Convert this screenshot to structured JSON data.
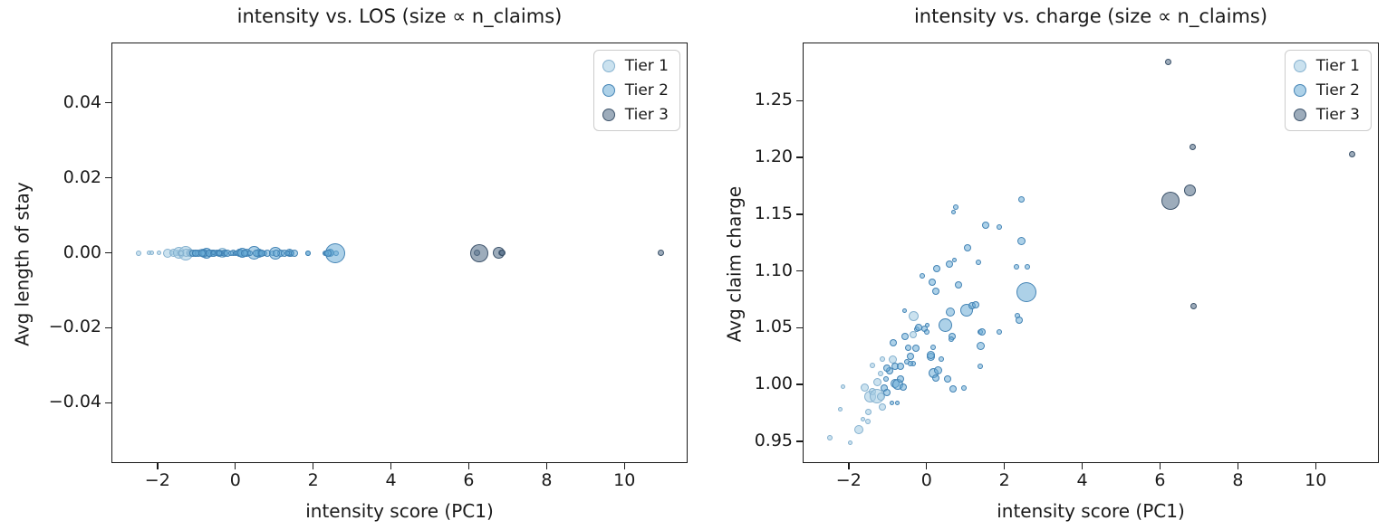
{
  "colors": {
    "frame": "#1a1a1a",
    "text": "#1a1a1a",
    "legend_border": "#cccccc",
    "tier1": {
      "fill": "rgba(168,206,228,0.6)",
      "edge": "rgba(130,175,206,0.95)"
    },
    "tier2": {
      "fill": "rgba(105,172,214,0.55)",
      "edge": "rgba(62,128,178,0.95)"
    },
    "tier3": {
      "fill": "rgba(92,116,141,0.6)",
      "edge": "rgba(55,78,102,0.95)"
    }
  },
  "legend": {
    "items": [
      {
        "label": "Tier 1",
        "tier": 1
      },
      {
        "label": "Tier 2",
        "tier": 2
      },
      {
        "label": "Tier 3",
        "tier": 3
      }
    ]
  },
  "chart_data": {
    "charts": [
      {
        "type": "scatter",
        "title": "intensity vs. LOS (size ∝ n_claims)",
        "xlabel": "intensity score (PC1)",
        "ylabel": "Avg length of stay",
        "xlim": [
          -3.16,
          11.6
        ],
        "ylim": [
          -0.0558,
          0.0558
        ],
        "xticks": [
          {
            "v": -2,
            "label": "−2"
          },
          {
            "v": 0,
            "label": "0"
          },
          {
            "v": 2,
            "label": "2"
          },
          {
            "v": 4,
            "label": "4"
          },
          {
            "v": 6,
            "label": "6"
          },
          {
            "v": 8,
            "label": "8"
          },
          {
            "v": 10,
            "label": "10"
          }
        ],
        "yticks": [
          {
            "v": 0.04,
            "label": "0.04"
          },
          {
            "v": 0.02,
            "label": "0.02"
          },
          {
            "v": 0,
            "label": "0.00"
          },
          {
            "v": -0.02,
            "label": "−0.02"
          },
          {
            "v": -0.04,
            "label": "−0.04"
          }
        ],
        "legend_position": "upper right",
        "y_field": "zero",
        "note": "every point has Avg length of stay = 0.00"
      },
      {
        "type": "scatter",
        "title": "intensity vs. charge (size ∝ n_claims)",
        "xlabel": "intensity score (PC1)",
        "ylabel": "Avg claim charge",
        "xlim": [
          -3.16,
          11.6
        ],
        "ylim": [
          0.9315,
          1.3005
        ],
        "xticks": [
          {
            "v": -2,
            "label": "−2"
          },
          {
            "v": 0,
            "label": "0"
          },
          {
            "v": 2,
            "label": "2"
          },
          {
            "v": 4,
            "label": "4"
          },
          {
            "v": 6,
            "label": "6"
          },
          {
            "v": 8,
            "label": "8"
          },
          {
            "v": 10,
            "label": "10"
          }
        ],
        "yticks": [
          {
            "v": 1.25,
            "label": "1.25"
          },
          {
            "v": 1.2,
            "label": "1.20"
          },
          {
            "v": 1.15,
            "label": "1.15"
          },
          {
            "v": 1.1,
            "label": "1.10"
          },
          {
            "v": 1.05,
            "label": "1.05"
          },
          {
            "v": 1.0,
            "label": "1.00"
          },
          {
            "v": 0.95,
            "label": "0.95"
          }
        ],
        "legend_position": "upper right",
        "y_field": "charge",
        "note": "x values shared with left chart; marker size proportional to n_claims"
      }
    ],
    "points": [
      {
        "x": -2.49,
        "charge": 0.953,
        "r": 3,
        "tier": 1
      },
      {
        "x": -2.21,
        "charge": 0.978,
        "r": 2.5,
        "tier": 1
      },
      {
        "x": -2.14,
        "charge": 0.998,
        "r": 2.5,
        "tier": 1
      },
      {
        "x": -1.95,
        "charge": 0.949,
        "r": 2.5,
        "tier": 1
      },
      {
        "x": -1.74,
        "charge": 0.96,
        "r": 5,
        "tier": 1
      },
      {
        "x": -1.63,
        "charge": 0.969,
        "r": 2.5,
        "tier": 1
      },
      {
        "x": -1.51,
        "charge": 0.967,
        "r": 3,
        "tier": 1
      },
      {
        "x": -1.49,
        "charge": 0.976,
        "r": 3.5,
        "tier": 1
      },
      {
        "x": -1.6,
        "charge": 0.997,
        "r": 4.5,
        "tier": 1
      },
      {
        "x": -1.44,
        "charge": 0.989,
        "r": 6.5,
        "tier": 1
      },
      {
        "x": -1.4,
        "charge": 0.994,
        "r": 4,
        "tier": 1
      },
      {
        "x": -1.28,
        "charge": 0.99,
        "r": 8,
        "tier": 1
      },
      {
        "x": -1.16,
        "charge": 0.989,
        "r": 4.5,
        "tier": 1
      },
      {
        "x": -1.13,
        "charge": 0.98,
        "r": 4,
        "tier": 1
      },
      {
        "x": -1.26,
        "charge": 1.002,
        "r": 4.5,
        "tier": 1
      },
      {
        "x": -1.17,
        "charge": 1.01,
        "r": 3,
        "tier": 1
      },
      {
        "x": -1.4,
        "charge": 1.017,
        "r": 3,
        "tier": 1
      },
      {
        "x": -1.13,
        "charge": 1.022,
        "r": 3,
        "tier": 1
      },
      {
        "x": -0.86,
        "charge": 1.022,
        "r": 4.5,
        "tier": 1
      },
      {
        "x": -0.35,
        "charge": 1.044,
        "r": 4,
        "tier": 1
      },
      {
        "x": -0.33,
        "charge": 1.06,
        "r": 5.5,
        "tier": 1
      },
      {
        "x": -1.09,
        "charge": 0.997,
        "r": 4,
        "tier": 2
      },
      {
        "x": -1.02,
        "charge": 0.993,
        "r": 4,
        "tier": 2
      },
      {
        "x": -0.9,
        "charge": 0.984,
        "r": 2.5,
        "tier": 2
      },
      {
        "x": -0.74,
        "charge": 0.984,
        "r": 2.5,
        "tier": 2
      },
      {
        "x": -1.05,
        "charge": 1.005,
        "r": 3,
        "tier": 2
      },
      {
        "x": -0.82,
        "charge": 1.001,
        "r": 5,
        "tier": 2
      },
      {
        "x": -0.74,
        "charge": 1.0,
        "r": 6,
        "tier": 2
      },
      {
        "x": -0.67,
        "charge": 1.005,
        "r": 4,
        "tier": 2
      },
      {
        "x": -0.59,
        "charge": 0.998,
        "r": 4,
        "tier": 2
      },
      {
        "x": -0.94,
        "charge": 1.012,
        "r": 4,
        "tier": 2
      },
      {
        "x": -0.82,
        "charge": 1.016,
        "r": 4,
        "tier": 2
      },
      {
        "x": -1.02,
        "charge": 1.014,
        "r": 4,
        "tier": 2
      },
      {
        "x": -0.67,
        "charge": 1.016,
        "r": 4,
        "tier": 2
      },
      {
        "x": -0.51,
        "charge": 1.02,
        "r": 3,
        "tier": 2
      },
      {
        "x": -0.35,
        "charge": 1.018,
        "r": 3,
        "tier": 2
      },
      {
        "x": -0.47,
        "charge": 1.032,
        "r": 3.5,
        "tier": 2
      },
      {
        "x": -0.28,
        "charge": 1.032,
        "r": 4,
        "tier": 2
      },
      {
        "x": -0.86,
        "charge": 1.037,
        "r": 4,
        "tier": 2
      },
      {
        "x": -0.56,
        "charge": 1.042,
        "r": 4,
        "tier": 2
      },
      {
        "x": -0.56,
        "charge": 1.065,
        "r": 2.5,
        "tier": 2
      },
      {
        "x": -0.42,
        "charge": 1.025,
        "r": 4,
        "tier": 2
      },
      {
        "x": -0.42,
        "charge": 1.018,
        "r": 3,
        "tier": 2
      },
      {
        "x": -0.26,
        "charge": 1.049,
        "r": 3,
        "tier": 2
      },
      {
        "x": -0.21,
        "charge": 1.05,
        "r": 4,
        "tier": 2
      },
      {
        "x": -0.05,
        "charge": 1.049,
        "r": 3.5,
        "tier": 2
      },
      {
        "x": 0.0,
        "charge": 1.046,
        "r": 3,
        "tier": 2
      },
      {
        "x": 0.02,
        "charge": 1.052,
        "r": 2.5,
        "tier": 2
      },
      {
        "x": 0.12,
        "charge": 1.024,
        "r": 4.5,
        "tier": 2
      },
      {
        "x": 0.16,
        "charge": 1.033,
        "r": 3,
        "tier": 2
      },
      {
        "x": 0.11,
        "charge": 1.026,
        "r": 4.5,
        "tier": 2
      },
      {
        "x": -0.12,
        "charge": 1.096,
        "r": 3,
        "tier": 2
      },
      {
        "x": 0.14,
        "charge": 1.09,
        "r": 4,
        "tier": 2
      },
      {
        "x": 0.23,
        "charge": 1.082,
        "r": 4,
        "tier": 2
      },
      {
        "x": 0.26,
        "charge": 1.102,
        "r": 4,
        "tier": 2
      },
      {
        "x": 0.58,
        "charge": 1.106,
        "r": 4,
        "tier": 2
      },
      {
        "x": 0.72,
        "charge": 1.11,
        "r": 2.5,
        "tier": 2
      },
      {
        "x": 0.7,
        "charge": 1.152,
        "r": 2.5,
        "tier": 2
      },
      {
        "x": 0.74,
        "charge": 1.156,
        "r": 3,
        "tier": 2
      },
      {
        "x": 0.81,
        "charge": 1.088,
        "r": 4,
        "tier": 2
      },
      {
        "x": 0.6,
        "charge": 1.064,
        "r": 5,
        "tier": 2
      },
      {
        "x": 0.49,
        "charge": 1.052,
        "r": 7.5,
        "tier": 2
      },
      {
        "x": 0.65,
        "charge": 1.042,
        "r": 4,
        "tier": 2
      },
      {
        "x": 0.63,
        "charge": 1.04,
        "r": 3,
        "tier": 2
      },
      {
        "x": 0.19,
        "charge": 1.01,
        "r": 5.5,
        "tier": 2
      },
      {
        "x": 0.3,
        "charge": 1.012,
        "r": 4.5,
        "tier": 2
      },
      {
        "x": 0.23,
        "charge": 1.006,
        "r": 4,
        "tier": 2
      },
      {
        "x": 0.53,
        "charge": 1.005,
        "r": 4,
        "tier": 2
      },
      {
        "x": 0.37,
        "charge": 1.022,
        "r": 3,
        "tier": 2
      },
      {
        "x": 0.67,
        "charge": 0.996,
        "r": 4,
        "tier": 2
      },
      {
        "x": 0.95,
        "charge": 0.997,
        "r": 3,
        "tier": 2
      },
      {
        "x": 1.04,
        "charge": 1.065,
        "r": 7,
        "tier": 2
      },
      {
        "x": 1.16,
        "charge": 1.069,
        "r": 4,
        "tier": 2
      },
      {
        "x": 1.27,
        "charge": 1.07,
        "r": 4,
        "tier": 2
      },
      {
        "x": 1.39,
        "charge": 1.046,
        "r": 3,
        "tier": 2
      },
      {
        "x": 1.42,
        "charge": 1.046,
        "r": 4,
        "tier": 2
      },
      {
        "x": 1.4,
        "charge": 1.034,
        "r": 4.5,
        "tier": 2
      },
      {
        "x": 1.37,
        "charge": 1.016,
        "r": 3,
        "tier": 2
      },
      {
        "x": 1.33,
        "charge": 1.108,
        "r": 3,
        "tier": 2
      },
      {
        "x": 1.51,
        "charge": 1.14,
        "r": 4,
        "tier": 2
      },
      {
        "x": 1.88,
        "charge": 1.139,
        "r": 3,
        "tier": 2
      },
      {
        "x": 1.88,
        "charge": 1.046,
        "r": 3,
        "tier": 2
      },
      {
        "x": 1.05,
        "charge": 1.12,
        "r": 4,
        "tier": 2
      },
      {
        "x": 2.44,
        "charge": 1.163,
        "r": 3.5,
        "tier": 2
      },
      {
        "x": 2.44,
        "charge": 1.126,
        "r": 4.5,
        "tier": 2
      },
      {
        "x": 2.3,
        "charge": 1.104,
        "r": 3,
        "tier": 2
      },
      {
        "x": 2.58,
        "charge": 1.104,
        "r": 3,
        "tier": 2
      },
      {
        "x": 2.56,
        "charge": 1.081,
        "r": 11,
        "tier": 2
      },
      {
        "x": 2.33,
        "charge": 1.061,
        "r": 3,
        "tier": 2
      },
      {
        "x": 2.37,
        "charge": 1.057,
        "r": 4,
        "tier": 2
      },
      {
        "x": 6.2,
        "charge": 1.284,
        "r": 3.5,
        "tier": 3
      },
      {
        "x": 6.83,
        "charge": 1.209,
        "r": 3.5,
        "tier": 3
      },
      {
        "x": 10.93,
        "charge": 1.203,
        "r": 3.5,
        "tier": 3
      },
      {
        "x": 6.77,
        "charge": 1.171,
        "r": 6.5,
        "tier": 3
      },
      {
        "x": 6.27,
        "charge": 1.162,
        "r": 10,
        "tier": 3
      },
      {
        "x": 6.86,
        "charge": 1.069,
        "r": 3.5,
        "tier": 3
      }
    ]
  }
}
